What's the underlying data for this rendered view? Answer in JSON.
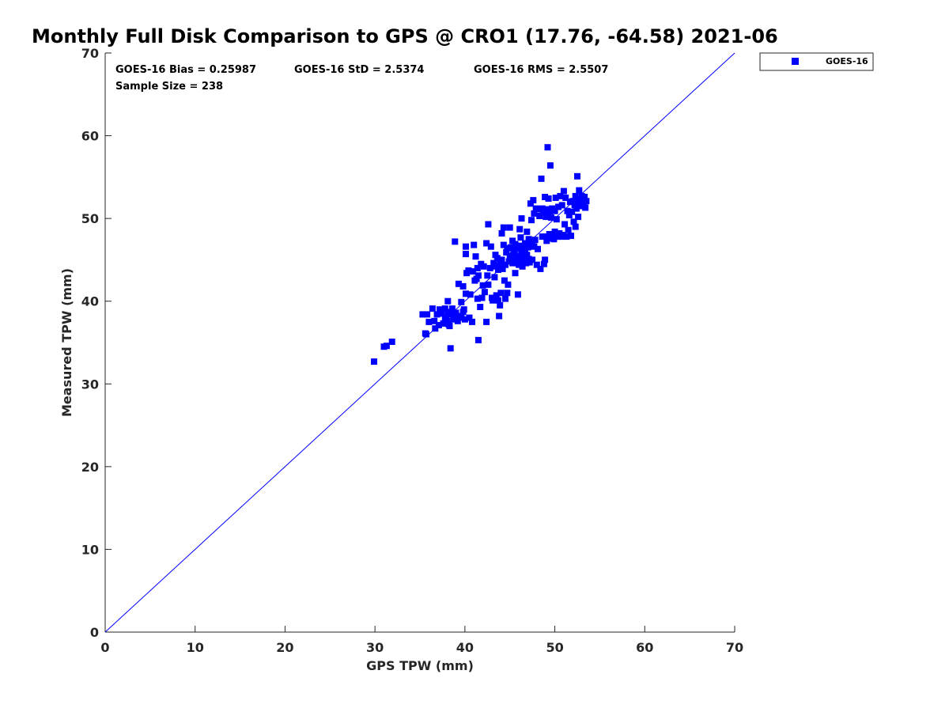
{
  "chart_data": {
    "type": "scatter",
    "title": "Monthly Full Disk Comparison to GPS @ CRO1 (17.76, -64.58) 2021-06",
    "xlabel": "GPS TPW (mm)",
    "ylabel": "Measured TPW (mm)",
    "xlim": [
      0,
      70
    ],
    "ylim": [
      0,
      70
    ],
    "xticks": [
      "0",
      "10",
      "20",
      "30",
      "40",
      "50",
      "60",
      "70"
    ],
    "yticks": [
      "0",
      "10",
      "20",
      "30",
      "40",
      "50",
      "60",
      "70"
    ],
    "grid": false,
    "legend": {
      "position": "top-right",
      "entries": [
        "GOES-16"
      ]
    },
    "annotations": [
      "GOES-16 Bias = 0.25987",
      "GOES-16 StD = 2.5374",
      "GOES-16 RMS = 2.5507",
      "Sample Size = 238"
    ],
    "reference_line": {
      "x": [
        0,
        70
      ],
      "y": [
        0,
        70
      ],
      "color": "#0000ff"
    },
    "series": [
      {
        "name": "GOES-16",
        "color": "#0000ff",
        "marker": "square",
        "points": [
          [
            29.9,
            32.7
          ],
          [
            31.0,
            34.5
          ],
          [
            31.3,
            34.6
          ],
          [
            31.9,
            35.1
          ],
          [
            35.3,
            38.4
          ],
          [
            35.8,
            38.4
          ],
          [
            35.6,
            36.1
          ],
          [
            35.7,
            36.0
          ],
          [
            36.0,
            37.5
          ],
          [
            36.4,
            39.1
          ],
          [
            36.6,
            37.6
          ],
          [
            36.7,
            36.7
          ],
          [
            36.9,
            38.4
          ],
          [
            37.1,
            37.1
          ],
          [
            37.2,
            39.0
          ],
          [
            37.4,
            38.5
          ],
          [
            37.6,
            37.3
          ],
          [
            37.8,
            38.0
          ],
          [
            37.8,
            39.1
          ],
          [
            37.9,
            38.1
          ],
          [
            38.0,
            37.6
          ],
          [
            38.1,
            38.7
          ],
          [
            38.1,
            40.0
          ],
          [
            38.2,
            37.2
          ],
          [
            38.3,
            37.0
          ],
          [
            38.4,
            34.3
          ],
          [
            38.5,
            38.4
          ],
          [
            38.6,
            39.1
          ],
          [
            38.7,
            37.8
          ],
          [
            38.8,
            38.0
          ],
          [
            38.9,
            47.2
          ],
          [
            39.0,
            38.1
          ],
          [
            39.0,
            38.6
          ],
          [
            39.2,
            37.6
          ],
          [
            39.3,
            42.1
          ],
          [
            39.4,
            38.0
          ],
          [
            39.6,
            39.9
          ],
          [
            39.6,
            38.2
          ],
          [
            39.8,
            38.7
          ],
          [
            39.8,
            41.8
          ],
          [
            39.9,
            39.0
          ],
          [
            40.0,
            37.8
          ],
          [
            40.1,
            40.9
          ],
          [
            40.1,
            46.6
          ],
          [
            40.1,
            45.7
          ],
          [
            40.2,
            43.4
          ],
          [
            40.4,
            43.7
          ],
          [
            40.5,
            38.0
          ],
          [
            40.6,
            40.8
          ],
          [
            40.8,
            37.5
          ],
          [
            40.9,
            43.6
          ],
          [
            41.0,
            46.8
          ],
          [
            41.1,
            42.5
          ],
          [
            41.2,
            45.4
          ],
          [
            41.3,
            42.7
          ],
          [
            41.4,
            44.0
          ],
          [
            41.4,
            40.3
          ],
          [
            41.5,
            35.3
          ],
          [
            41.5,
            43.1
          ],
          [
            41.7,
            39.3
          ],
          [
            41.8,
            44.5
          ],
          [
            41.9,
            40.4
          ],
          [
            42.0,
            41.9
          ],
          [
            42.1,
            44.2
          ],
          [
            42.2,
            41.1
          ],
          [
            42.4,
            47.0
          ],
          [
            42.4,
            37.5
          ],
          [
            42.5,
            43.1
          ],
          [
            42.6,
            42.0
          ],
          [
            42.6,
            49.3
          ],
          [
            42.8,
            44.0
          ],
          [
            42.9,
            46.6
          ],
          [
            43.0,
            40.4
          ],
          [
            43.1,
            40.1
          ],
          [
            43.2,
            44.6
          ],
          [
            43.3,
            42.9
          ],
          [
            43.4,
            45.6
          ],
          [
            43.4,
            44.2
          ],
          [
            43.5,
            40.7
          ],
          [
            43.6,
            45.2
          ],
          [
            43.7,
            43.8
          ],
          [
            43.7,
            40.1
          ],
          [
            43.8,
            38.2
          ],
          [
            43.9,
            44.5
          ],
          [
            43.9,
            39.5
          ],
          [
            44.0,
            41.0
          ],
          [
            44.1,
            45.0
          ],
          [
            44.1,
            48.2
          ],
          [
            44.2,
            43.9
          ],
          [
            44.3,
            48.9
          ],
          [
            44.3,
            46.8
          ],
          [
            44.4,
            42.5
          ],
          [
            44.5,
            40.3
          ],
          [
            44.5,
            44.4
          ],
          [
            44.6,
            45.9
          ],
          [
            44.7,
            41.0
          ],
          [
            44.7,
            46.4
          ],
          [
            44.8,
            42.0
          ],
          [
            44.9,
            44.8
          ],
          [
            45.0,
            48.9
          ],
          [
            45.0,
            45.5
          ],
          [
            45.1,
            44.9
          ],
          [
            45.1,
            46.5
          ],
          [
            45.2,
            45.2
          ],
          [
            45.3,
            47.3
          ],
          [
            45.3,
            44.6
          ],
          [
            45.4,
            46.1
          ],
          [
            45.5,
            45.7
          ],
          [
            45.6,
            43.4
          ],
          [
            45.6,
            46.9
          ],
          [
            45.7,
            44.6
          ],
          [
            45.7,
            45.4
          ],
          [
            45.8,
            46.4
          ],
          [
            45.9,
            45.0
          ],
          [
            45.9,
            40.8
          ],
          [
            46.0,
            46.7
          ],
          [
            46.0,
            44.4
          ],
          [
            46.1,
            44.9
          ],
          [
            46.1,
            48.7
          ],
          [
            46.2,
            45.4
          ],
          [
            46.2,
            47.7
          ],
          [
            46.3,
            50.0
          ],
          [
            46.3,
            45.9
          ],
          [
            46.4,
            44.2
          ],
          [
            46.5,
            46.3
          ],
          [
            46.5,
            44.8
          ],
          [
            46.6,
            45.0
          ],
          [
            46.7,
            47.0
          ],
          [
            46.7,
            46.1
          ],
          [
            46.8,
            44.6
          ],
          [
            46.9,
            48.4
          ],
          [
            46.9,
            45.6
          ],
          [
            47.0,
            46.5
          ],
          [
            47.1,
            45.1
          ],
          [
            47.1,
            47.5
          ],
          [
            47.2,
            44.7
          ],
          [
            47.3,
            51.8
          ],
          [
            47.3,
            46.9
          ],
          [
            47.4,
            49.8
          ],
          [
            47.5,
            47.1
          ],
          [
            47.5,
            45.0
          ],
          [
            47.6,
            52.2
          ],
          [
            47.7,
            46.6
          ],
          [
            47.7,
            50.6
          ],
          [
            47.8,
            47.4
          ],
          [
            47.9,
            51.2
          ],
          [
            48.0,
            44.4
          ],
          [
            48.1,
            46.3
          ],
          [
            48.2,
            51.1
          ],
          [
            48.3,
            50.3
          ],
          [
            48.4,
            43.9
          ],
          [
            48.5,
            54.8
          ],
          [
            48.6,
            51.2
          ],
          [
            48.6,
            47.8
          ],
          [
            48.7,
            50.7
          ],
          [
            48.8,
            44.5
          ],
          [
            48.9,
            45.0
          ],
          [
            48.9,
            52.6
          ],
          [
            49.0,
            50.2
          ],
          [
            49.0,
            47.8
          ],
          [
            49.1,
            51.1
          ],
          [
            49.1,
            47.3
          ],
          [
            49.2,
            58.6
          ],
          [
            49.3,
            52.4
          ],
          [
            49.4,
            50.8
          ],
          [
            49.4,
            48.1
          ],
          [
            49.5,
            56.4
          ],
          [
            49.5,
            47.6
          ],
          [
            49.6,
            50.1
          ],
          [
            49.7,
            51.2
          ],
          [
            49.8,
            48.0
          ],
          [
            49.9,
            47.5
          ],
          [
            50.0,
            50.9
          ],
          [
            50.0,
            48.4
          ],
          [
            50.1,
            52.5
          ],
          [
            50.2,
            49.9
          ],
          [
            50.3,
            47.8
          ],
          [
            50.4,
            51.4
          ],
          [
            50.5,
            48.2
          ],
          [
            50.6,
            52.7
          ],
          [
            50.7,
            47.8
          ],
          [
            50.8,
            51.6
          ],
          [
            50.9,
            48.0
          ],
          [
            51.0,
            53.3
          ],
          [
            51.1,
            49.3
          ],
          [
            51.2,
            52.5
          ],
          [
            51.3,
            47.8
          ],
          [
            51.4,
            50.9
          ],
          [
            51.5,
            48.6
          ],
          [
            51.6,
            50.4
          ],
          [
            51.7,
            52.0
          ],
          [
            51.8,
            47.9
          ],
          [
            51.9,
            50.8
          ],
          [
            52.0,
            52.1
          ],
          [
            52.1,
            49.6
          ],
          [
            52.2,
            51.6
          ],
          [
            52.3,
            52.7
          ],
          [
            52.3,
            49.0
          ],
          [
            52.4,
            51.2
          ],
          [
            52.5,
            52.3
          ],
          [
            52.5,
            55.1
          ],
          [
            52.6,
            50.2
          ],
          [
            52.7,
            53.4
          ],
          [
            52.8,
            51.5
          ],
          [
            52.9,
            52.0
          ],
          [
            53.0,
            52.7
          ],
          [
            53.2,
            51.6
          ],
          [
            53.3,
            52.6
          ],
          [
            53.4,
            51.3
          ],
          [
            53.5,
            52.1
          ]
        ]
      }
    ]
  }
}
